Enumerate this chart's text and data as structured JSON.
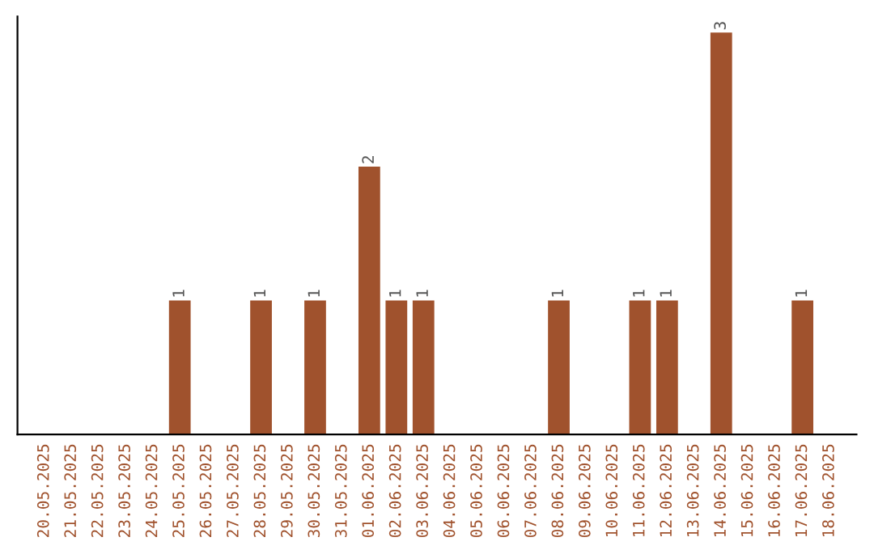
{
  "chart_data": {
    "type": "bar",
    "categories": [
      "20.05.2025",
      "21.05.2025",
      "22.05.2025",
      "23.05.2025",
      "24.05.2025",
      "25.05.2025",
      "26.05.2025",
      "27.05.2025",
      "28.05.2025",
      "29.05.2025",
      "30.05.2025",
      "31.05.2025",
      "01.06.2025",
      "02.06.2025",
      "03.06.2025",
      "04.06.2025",
      "05.06.2025",
      "06.06.2025",
      "07.06.2025",
      "08.06.2025",
      "09.06.2025",
      "10.06.2025",
      "11.06.2025",
      "12.06.2025",
      "13.06.2025",
      "14.06.2025",
      "15.06.2025",
      "16.06.2025",
      "17.06.2025",
      "18.06.2025"
    ],
    "values": [
      0,
      0,
      0,
      0,
      0,
      1,
      0,
      0,
      1,
      0,
      1,
      0,
      2,
      1,
      1,
      0,
      0,
      0,
      0,
      1,
      0,
      0,
      1,
      1,
      0,
      3,
      0,
      0,
      1,
      0
    ],
    "value_labels": [
      null,
      null,
      null,
      null,
      null,
      "1",
      null,
      null,
      "1",
      null,
      "1",
      null,
      "2",
      "1",
      "1",
      null,
      null,
      null,
      null,
      "1",
      null,
      null,
      "1",
      "1",
      null,
      "3",
      null,
      null,
      "1",
      null
    ],
    "color": "#a0522d",
    "tick_labels": "x",
    "grid": false,
    "legend": false
  }
}
